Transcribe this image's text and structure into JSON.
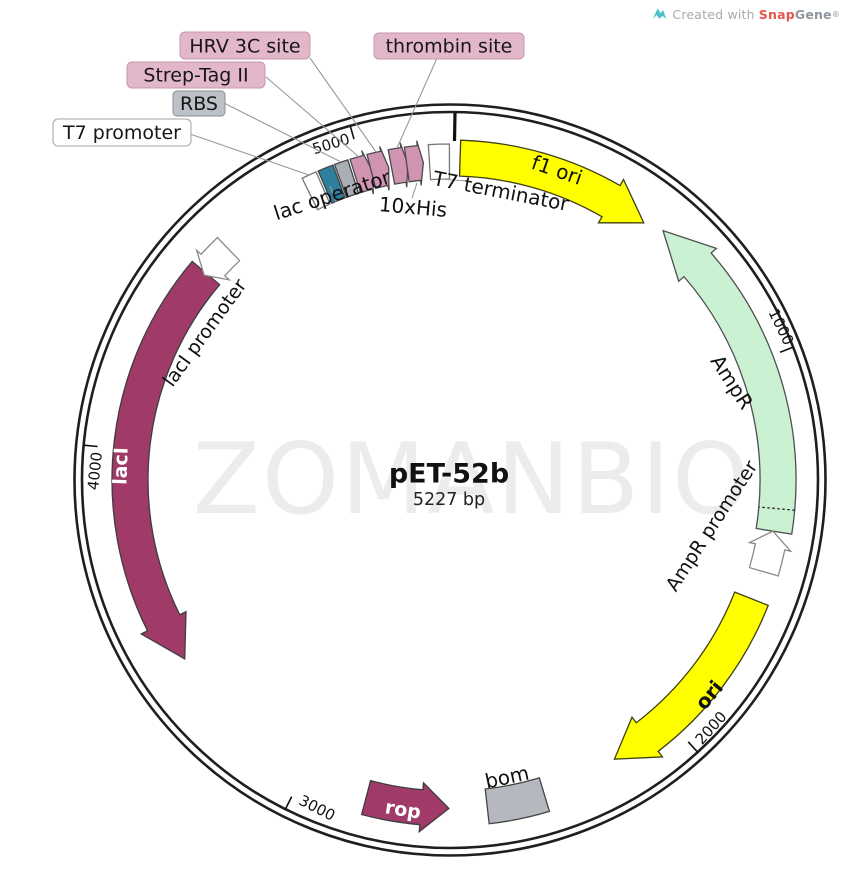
{
  "credit": {
    "prefix": "Created with",
    "snap": "Snap",
    "gene": "Gene",
    "reg": "®"
  },
  "title": {
    "name": "pET-52b",
    "size": "5227 bp"
  },
  "watermark": "ZOMANBIO",
  "ticks": {
    "k1000": "1000",
    "k2000": "2000",
    "k3000": "3000",
    "k4000": "4000",
    "k5000": "5000"
  },
  "features": {
    "f1_ori": "f1 ori",
    "ampr": "AmpR",
    "ampr_promoter": "AmpR promoter",
    "ori": "ori",
    "bom": "bom",
    "rop": "rop",
    "laci": "lacI",
    "laci_promoter": "lacI promoter",
    "t7_promoter": "T7 promoter",
    "lac_operator": "lac operator",
    "rbs": "RBS",
    "strep_tag": "Strep-Tag II",
    "hrv_3c": "HRV 3C site",
    "thrombin": "thrombin site",
    "his_tag": "10xHis",
    "t7_terminator": "T7 terminator"
  },
  "colors": {
    "feature_pink": "#d193b2",
    "feature_teal": "#2e7f9c",
    "feature_gray": "#a9aeb5",
    "feature_gray2": "#b5b9bf",
    "feature_yellow": "#ffff00",
    "feature_green": "#c9f1d2",
    "feature_magenta": "#a03a68",
    "label_pink_bg": "#e3b7ca",
    "label_gray_bg": "#bcc1c7",
    "brand_teal": "#4ac0ca",
    "brand_red": "#e4574e",
    "watermark_gray": "#ececec"
  }
}
